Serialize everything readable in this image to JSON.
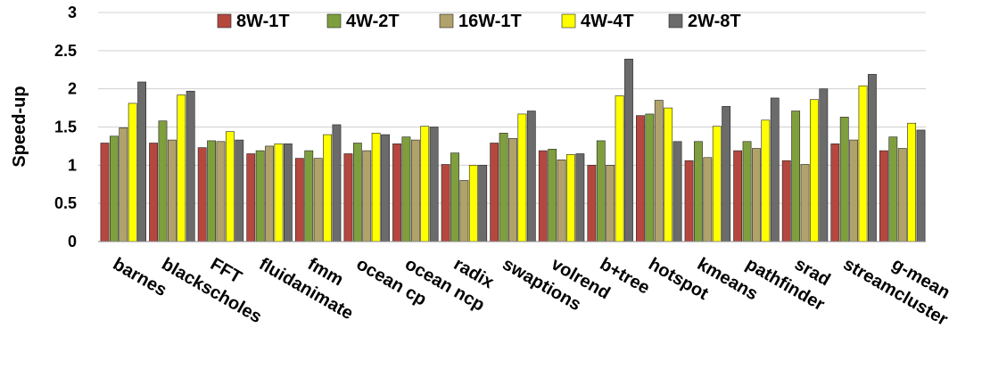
{
  "chart_data": {
    "type": "bar",
    "title": "",
    "xlabel": "",
    "ylabel": "Speed-up",
    "ylim": [
      0,
      3
    ],
    "yticks": [
      "0",
      "0.5",
      "1",
      "1.5",
      "2",
      "2.5",
      "3"
    ],
    "grid": true,
    "legend_position": "top",
    "categories": [
      "barnes",
      "blackscholes",
      "FFT",
      "fluidanimate",
      "fmm",
      "ocean cp",
      "ocean ncp",
      "radix",
      "swaptions",
      "volrend",
      "b+tree",
      "hotspot",
      "kmeans",
      "pathfinder",
      "srad",
      "streamcluster",
      "g-mean"
    ],
    "series": [
      {
        "name": "8W-1T",
        "color": "#b5473f",
        "values": [
          1.29,
          1.29,
          1.23,
          1.15,
          1.09,
          1.15,
          1.28,
          1.01,
          1.29,
          1.19,
          1.0,
          1.65,
          1.06,
          1.19,
          1.06,
          1.28,
          1.19
        ]
      },
      {
        "name": "4W-2T",
        "color": "#7f9f3e",
        "values": [
          1.38,
          1.58,
          1.32,
          1.19,
          1.19,
          1.29,
          1.37,
          1.16,
          1.42,
          1.21,
          1.32,
          1.67,
          1.31,
          1.31,
          1.71,
          1.63,
          1.37
        ]
      },
      {
        "name": "16W-1T",
        "color": "#b0a26a",
        "values": [
          1.49,
          1.33,
          1.31,
          1.25,
          1.09,
          1.19,
          1.33,
          0.8,
          1.35,
          1.07,
          1.0,
          1.85,
          1.1,
          1.22,
          1.01,
          1.33,
          1.22
        ]
      },
      {
        "name": "4W-4T",
        "color": "#ffff00",
        "values": [
          1.81,
          1.92,
          1.44,
          1.28,
          1.4,
          1.42,
          1.51,
          1.0,
          1.67,
          1.14,
          1.91,
          1.75,
          1.51,
          1.59,
          1.86,
          2.04,
          1.55
        ]
      },
      {
        "name": "2W-8T",
        "color": "#6b6b6b",
        "values": [
          2.09,
          1.97,
          1.33,
          1.28,
          1.53,
          1.4,
          1.5,
          1.0,
          1.71,
          1.15,
          2.39,
          1.31,
          1.77,
          1.88,
          2.0,
          2.19,
          1.46
        ]
      }
    ]
  }
}
